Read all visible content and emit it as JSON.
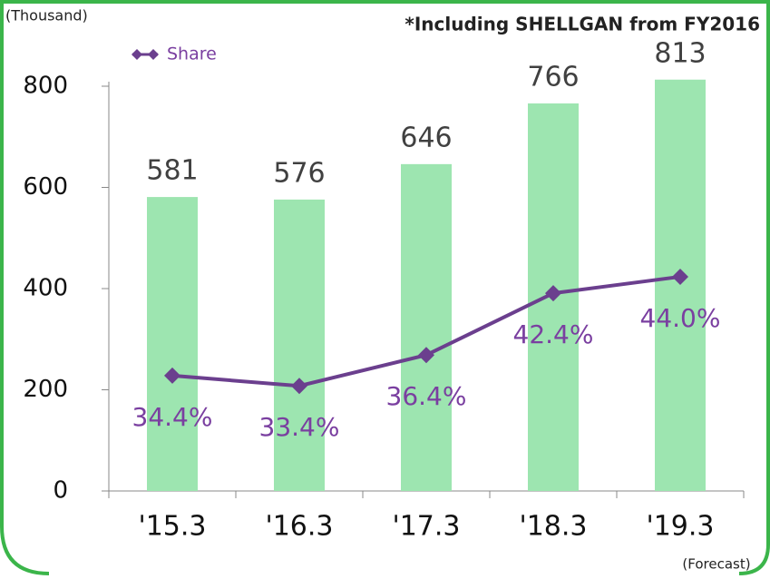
{
  "chart_data": {
    "type": "bar",
    "unit_label": "(Thousand)",
    "note": "*Including SHELLGAN from FY2016",
    "annotation": "(Forecast)",
    "categories": [
      "'15.3",
      "'16.3",
      "'17.3",
      "'18.3",
      "'19.3"
    ],
    "ylim": [
      0,
      800
    ],
    "yticks": [
      0,
      200,
      400,
      600,
      800
    ],
    "y2lim": [
      23.2,
      62.5
    ],
    "legend": "top-left",
    "series": [
      {
        "type": "bar",
        "color": "#9de5b0",
        "values": [
          581,
          576,
          646,
          766,
          813
        ]
      },
      {
        "type": "line",
        "name": "Share",
        "axis": "y2",
        "color": "#6b3f8e",
        "values": [
          34.4,
          33.4,
          36.4,
          42.4,
          44.0
        ],
        "value_labels": [
          "34.4%",
          "33.4%",
          "36.4%",
          "42.4%",
          "44.0%"
        ]
      }
    ]
  }
}
